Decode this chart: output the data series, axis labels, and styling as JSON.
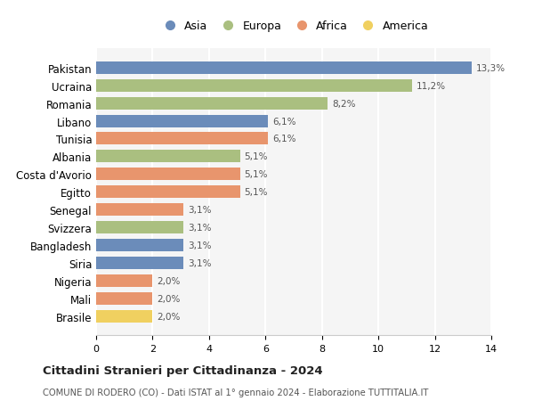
{
  "countries": [
    "Pakistan",
    "Ucraina",
    "Romania",
    "Libano",
    "Tunisia",
    "Albania",
    "Costa d'Avorio",
    "Egitto",
    "Senegal",
    "Svizzera",
    "Bangladesh",
    "Siria",
    "Nigeria",
    "Mali",
    "Brasile"
  ],
  "values": [
    13.3,
    11.2,
    8.2,
    6.1,
    6.1,
    5.1,
    5.1,
    5.1,
    3.1,
    3.1,
    3.1,
    3.1,
    2.0,
    2.0,
    2.0
  ],
  "labels": [
    "13,3%",
    "11,2%",
    "8,2%",
    "6,1%",
    "6,1%",
    "5,1%",
    "5,1%",
    "5,1%",
    "3,1%",
    "3,1%",
    "3,1%",
    "3,1%",
    "2,0%",
    "2,0%",
    "2,0%"
  ],
  "colors": [
    "#6b8cba",
    "#aabf80",
    "#aabf80",
    "#6b8cba",
    "#e8956d",
    "#aabf80",
    "#e8956d",
    "#e8956d",
    "#e8956d",
    "#aabf80",
    "#6b8cba",
    "#6b8cba",
    "#e8956d",
    "#e8956d",
    "#f0d060"
  ],
  "continent": [
    "Asia",
    "Europa",
    "Europa",
    "Asia",
    "Africa",
    "Europa",
    "Africa",
    "Africa",
    "Africa",
    "Europa",
    "Asia",
    "Asia",
    "Africa",
    "Africa",
    "America"
  ],
  "legend_labels": [
    "Asia",
    "Europa",
    "Africa",
    "America"
  ],
  "legend_colors": [
    "#6b8cba",
    "#aabf80",
    "#e8956d",
    "#f0d060"
  ],
  "title": "Cittadini Stranieri per Cittadinanza - 2024",
  "subtitle": "COMUNE DI RODERO (CO) - Dati ISTAT al 1° gennaio 2024 - Elaborazione TUTTITALIA.IT",
  "xlim": [
    0,
    14
  ],
  "xticks": [
    0,
    2,
    4,
    6,
    8,
    10,
    12,
    14
  ],
  "background_color": "#ffffff",
  "bar_background": "#f5f5f5",
  "grid_color": "#ffffff"
}
